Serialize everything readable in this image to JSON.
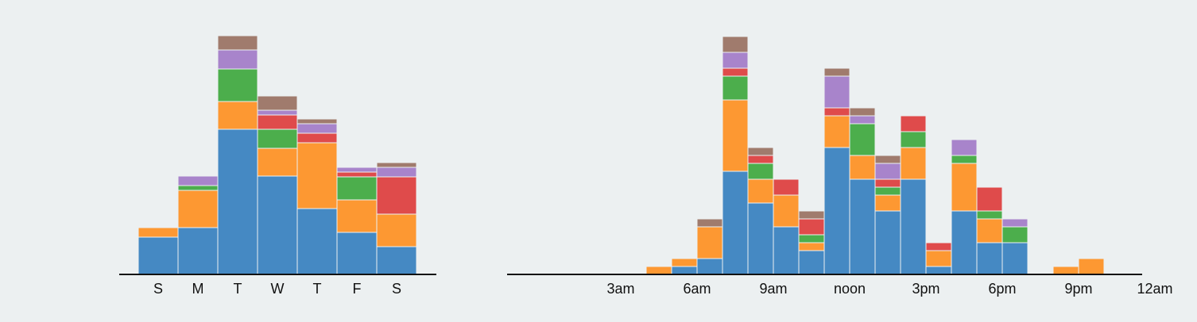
{
  "colors": {
    "background": "#ecf0f1",
    "series": [
      "#4589c3",
      "#fd9832",
      "#4cae4c",
      "#df4b4b",
      "#a884cb",
      "#a07b6d"
    ]
  },
  "chart_data": [
    {
      "type": "bar",
      "stacked": true,
      "grid": false,
      "ylim": [
        0,
        30
      ],
      "categories": [
        "S",
        "M",
        "T",
        "W",
        "T",
        "F",
        "S"
      ],
      "tick_labels": [
        "S",
        "M",
        "T",
        "W",
        "T",
        "F",
        "S"
      ],
      "series": [
        {
          "color": "#4589c3",
          "values": [
            4.7,
            5.9,
            18.3,
            12.4,
            8.3,
            5.3,
            3.5
          ]
        },
        {
          "color": "#fd9832",
          "values": [
            1.2,
            4.7,
            3.5,
            3.5,
            8.3,
            4.1,
            4.1
          ]
        },
        {
          "color": "#4cae4c",
          "values": [
            0,
            0.6,
            4.1,
            2.4,
            0,
            2.9,
            0
          ]
        },
        {
          "color": "#df4b4b",
          "values": [
            0,
            0,
            0,
            1.8,
            1.2,
            0.6,
            4.7
          ]
        },
        {
          "color": "#a884cb",
          "values": [
            0,
            1.2,
            2.4,
            0.6,
            1.2,
            0.6,
            1.2
          ]
        },
        {
          "color": "#a07b6d",
          "values": [
            0,
            0,
            1.8,
            1.8,
            0.6,
            0,
            0.6
          ]
        }
      ]
    },
    {
      "type": "bar",
      "stacked": true,
      "grid": false,
      "ylim": [
        0,
        30
      ],
      "x": [
        0,
        1,
        2,
        3,
        4,
        5,
        6,
        7,
        8,
        9,
        10,
        11,
        12,
        13,
        14,
        15,
        16,
        17,
        18,
        19,
        20,
        21,
        22,
        23
      ],
      "ticks": [
        {
          "at": 3,
          "label": "3am"
        },
        {
          "at": 6,
          "label": "6am"
        },
        {
          "at": 9,
          "label": "9am"
        },
        {
          "at": 12,
          "label": "noon"
        },
        {
          "at": 15,
          "label": "3pm"
        },
        {
          "at": 18,
          "label": "6pm"
        },
        {
          "at": 21,
          "label": "9pm"
        },
        {
          "at": 24,
          "label": "12am"
        }
      ],
      "series": [
        {
          "color": "#4589c3",
          "values": [
            0,
            0,
            0,
            0,
            0,
            1,
            2,
            13,
            9,
            6,
            3,
            16,
            12,
            8,
            12,
            1,
            8,
            4,
            4,
            0,
            0,
            0,
            0,
            0
          ]
        },
        {
          "color": "#fd9832",
          "values": [
            0,
            0,
            0,
            0,
            1,
            1,
            4,
            9,
            3,
            4,
            1,
            4,
            3,
            2,
            4,
            2,
            6,
            3,
            0,
            0,
            1,
            2,
            0,
            0
          ]
        },
        {
          "color": "#4cae4c",
          "values": [
            0,
            0,
            0,
            0,
            0,
            0,
            0,
            3,
            2,
            0,
            1,
            0,
            4,
            1,
            2,
            0,
            1,
            1,
            2,
            0,
            0,
            0,
            0,
            0
          ]
        },
        {
          "color": "#df4b4b",
          "values": [
            0,
            0,
            0,
            0,
            0,
            0,
            0,
            1,
            1,
            2,
            2,
            1,
            0,
            1,
            2,
            1,
            0,
            3,
            0,
            0,
            0,
            0,
            0,
            0
          ]
        },
        {
          "color": "#a884cb",
          "values": [
            0,
            0,
            0,
            0,
            0,
            0,
            0,
            2,
            0,
            0,
            0,
            4,
            1,
            2,
            0,
            0,
            2,
            0,
            1,
            0,
            0,
            0,
            0,
            0
          ]
        },
        {
          "color": "#a07b6d",
          "values": [
            0,
            0,
            0,
            0,
            0,
            0,
            1,
            2,
            1,
            0,
            1,
            1,
            1,
            1,
            0,
            0,
            0,
            0,
            0,
            0,
            0,
            0,
            0,
            0
          ]
        }
      ]
    }
  ]
}
